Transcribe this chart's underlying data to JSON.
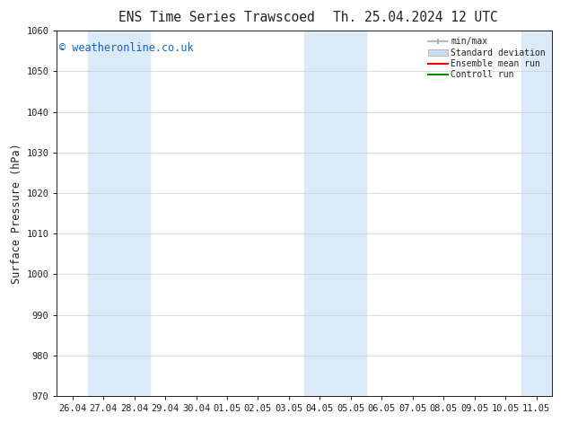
{
  "title_left": "ENS Time Series Trawscoed",
  "title_right": "Th. 25.04.2024 12 UTC",
  "ylabel": "Surface Pressure (hPa)",
  "ylim": [
    970,
    1060
  ],
  "yticks": [
    970,
    980,
    990,
    1000,
    1010,
    1020,
    1030,
    1040,
    1050,
    1060
  ],
  "xtick_labels": [
    "26.04",
    "27.04",
    "28.04",
    "29.04",
    "30.04",
    "01.05",
    "02.05",
    "03.05",
    "04.05",
    "05.05",
    "06.05",
    "07.05",
    "08.05",
    "09.05",
    "10.05",
    "11.05"
  ],
  "shaded_color": "#daeaf8",
  "background_color": "#ffffff",
  "watermark_text": "© weatheronline.co.uk",
  "watermark_color": "#1a5fcc",
  "legend_labels": [
    "min/max",
    "Standard deviation",
    "Ensemble mean run",
    "Controll run"
  ],
  "legend_colors": [
    "#999999",
    "#c8dcee",
    "#ff0000",
    "#008800"
  ],
  "font_color": "#222222",
  "tick_font_size": 7.5,
  "title_font_size": 10.5,
  "label_font_size": 8.5,
  "watermark_font_size": 8.5
}
